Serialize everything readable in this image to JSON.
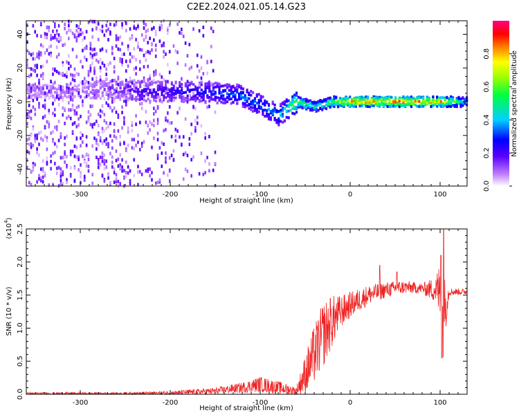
{
  "chart_data": [
    {
      "type": "heatmap",
      "title": "C2E2.2024.021.05.14.G23",
      "xlabel": "Height of straight line (km)",
      "ylabel": "Frequency (Hz)",
      "xlim": [
        -360,
        130
      ],
      "ylim": [
        -50,
        48
      ],
      "xticks": [
        -300,
        -200,
        -100,
        0,
        100
      ],
      "yticks": [
        -40,
        -20,
        0,
        20,
        40
      ],
      "colorbar": {
        "label": "Normalized spectral amplitude",
        "range": [
          0,
          1
        ],
        "ticks": [
          "0.0",
          "0.2",
          "0.4",
          "0.6",
          "0.8"
        ],
        "colormap": "rainbow (white-violet-blue-cyan-green-yellow-red-magenta)"
      },
      "description_points": [
        {
          "x": -300,
          "f": 6,
          "amp": 0.1
        },
        {
          "x": -270,
          "f": 8,
          "amp": 0.15
        },
        {
          "x": -225,
          "f": 6,
          "amp": 0.25
        },
        {
          "x": -175,
          "f": 6,
          "amp": 0.3
        },
        {
          "x": -150,
          "f": 5,
          "amp": 0.35
        },
        {
          "x": -125,
          "f": 4,
          "amp": 0.4
        },
        {
          "x": -100,
          "f": -2,
          "amp": 0.4
        },
        {
          "x": -80,
          "f": -8,
          "amp": 0.45
        },
        {
          "x": -60,
          "f": 0,
          "amp": 0.7
        },
        {
          "x": -40,
          "f": -3,
          "amp": 0.55
        },
        {
          "x": -20,
          "f": 0,
          "amp": 0.7
        },
        {
          "x": 0,
          "f": 0,
          "amp": 0.95
        },
        {
          "x": 50,
          "f": 0,
          "amp": 0.95
        },
        {
          "x": 100,
          "f": 0,
          "amp": 0.9
        },
        {
          "x": 130,
          "f": 0,
          "amp": 0.45
        }
      ]
    },
    {
      "type": "line",
      "xlabel": "Height of straight line (km)",
      "ylabel": "SNR (10 * v/v)",
      "y_multiplier": "(x10",
      "y_multiplier_exp": "4",
      "xlim": [
        -360,
        130
      ],
      "ylim": [
        0,
        2.5
      ],
      "xticks": [
        -300,
        -200,
        -100,
        0,
        100
      ],
      "yticks": [
        "0.0",
        "0.5",
        "1.0",
        "1.5",
        "2.0",
        "2.5"
      ],
      "color": "#ee2222",
      "envelope": {
        "x": [
          -360,
          -250,
          -200,
          -150,
          -120,
          -100,
          -80,
          -60,
          -50,
          -40,
          -30,
          -20,
          -10,
          0,
          20,
          40,
          60,
          80,
          95,
          100,
          103,
          105,
          110,
          130
        ],
        "center": [
          0.01,
          0.01,
          0.02,
          0.05,
          0.1,
          0.15,
          0.1,
          0.05,
          0.3,
          0.6,
          0.9,
          1.1,
          1.25,
          1.35,
          1.5,
          1.58,
          1.62,
          1.6,
          1.58,
          1.55,
          1.1,
          1.3,
          1.55,
          1.55
        ],
        "spread": [
          0.02,
          0.02,
          0.03,
          0.05,
          0.08,
          0.12,
          0.1,
          0.06,
          0.3,
          0.45,
          0.5,
          0.4,
          0.25,
          0.2,
          0.15,
          0.12,
          0.1,
          0.08,
          0.2,
          0.5,
          0.6,
          0.5,
          0.06,
          0.04
        ]
      },
      "peaks": [
        {
          "x": -22,
          "y": 1.45
        },
        {
          "x": 33,
          "y": 1.95
        },
        {
          "x": 52,
          "y": 1.85
        },
        {
          "x": 101,
          "y": 2.1
        },
        {
          "x": 104,
          "y": 2.5
        },
        {
          "x": 102,
          "y": 0.55
        }
      ]
    }
  ]
}
